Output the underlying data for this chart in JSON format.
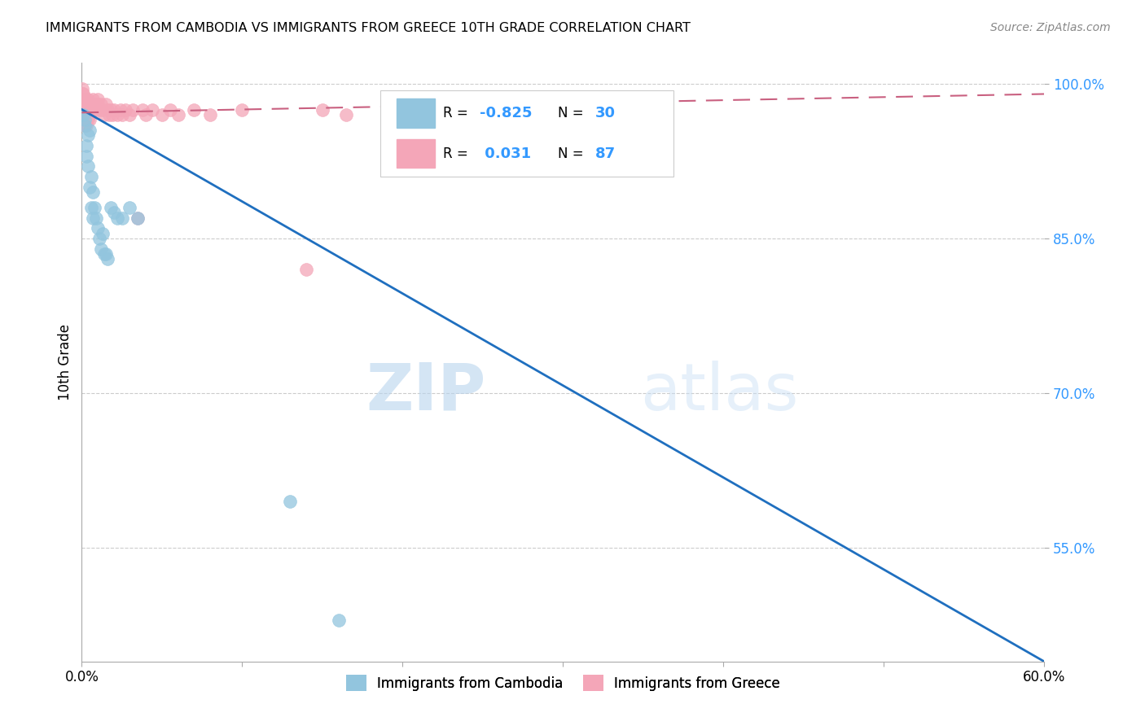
{
  "title": "IMMIGRANTS FROM CAMBODIA VS IMMIGRANTS FROM GREECE 10TH GRADE CORRELATION CHART",
  "source": "Source: ZipAtlas.com",
  "ylabel": "10th Grade",
  "x_label_bottom_center_1": "Immigrants from Cambodia",
  "x_label_bottom_center_2": "Immigrants from Greece",
  "xlim": [
    0.0,
    0.6
  ],
  "ylim": [
    0.44,
    1.02
  ],
  "yticks": [
    0.55,
    0.7,
    0.85,
    1.0
  ],
  "ytick_labels": [
    "55.0%",
    "70.0%",
    "85.0%",
    "100.0%"
  ],
  "xticks": [
    0.0,
    0.1,
    0.2,
    0.3,
    0.4,
    0.5,
    0.6
  ],
  "xtick_labels": [
    "0.0%",
    "",
    "",
    "",
    "",
    "",
    "60.0%"
  ],
  "r_cambodia": -0.825,
  "n_cambodia": 30,
  "r_greece": 0.031,
  "n_greece": 87,
  "color_cambodia": "#92c5de",
  "color_greece": "#f4a6b8",
  "line_color_cambodia": "#1f6fbf",
  "line_color_greece": "#c96080",
  "watermark_zip": "ZIP",
  "watermark_atlas": "atlas",
  "camb_line_x0": 0.0,
  "camb_line_y0": 0.975,
  "camb_line_x1": 0.6,
  "camb_line_y1": 0.44,
  "greece_line_x0": 0.0,
  "greece_line_y0": 0.972,
  "greece_line_x1": 0.6,
  "greece_line_y1": 0.99,
  "cambodia_x": [
    0.001,
    0.002,
    0.002,
    0.003,
    0.003,
    0.004,
    0.004,
    0.005,
    0.005,
    0.006,
    0.006,
    0.007,
    0.007,
    0.008,
    0.009,
    0.01,
    0.011,
    0.012,
    0.013,
    0.014,
    0.015,
    0.016,
    0.018,
    0.02,
    0.022,
    0.025,
    0.03,
    0.035,
    0.13,
    0.16
  ],
  "cambodia_y": [
    0.97,
    0.96,
    0.965,
    0.93,
    0.94,
    0.92,
    0.95,
    0.9,
    0.955,
    0.88,
    0.91,
    0.895,
    0.87,
    0.88,
    0.87,
    0.86,
    0.85,
    0.84,
    0.855,
    0.835,
    0.835,
    0.83,
    0.88,
    0.875,
    0.87,
    0.87,
    0.88,
    0.87,
    0.595,
    0.48
  ],
  "greece_x": [
    0.0005,
    0.0005,
    0.0005,
    0.0005,
    0.0005,
    0.001,
    0.001,
    0.001,
    0.001,
    0.001,
    0.001,
    0.001,
    0.001,
    0.001,
    0.001,
    0.001,
    0.001,
    0.001,
    0.0015,
    0.0015,
    0.002,
    0.002,
    0.002,
    0.002,
    0.002,
    0.002,
    0.002,
    0.002,
    0.002,
    0.002,
    0.003,
    0.003,
    0.003,
    0.003,
    0.003,
    0.003,
    0.003,
    0.003,
    0.003,
    0.003,
    0.004,
    0.004,
    0.004,
    0.004,
    0.004,
    0.005,
    0.005,
    0.005,
    0.005,
    0.006,
    0.006,
    0.007,
    0.007,
    0.007,
    0.008,
    0.009,
    0.01,
    0.01,
    0.011,
    0.012,
    0.013,
    0.014,
    0.015,
    0.016,
    0.017,
    0.018,
    0.019,
    0.02,
    0.022,
    0.024,
    0.025,
    0.027,
    0.03,
    0.032,
    0.035,
    0.038,
    0.04,
    0.044,
    0.05,
    0.055,
    0.06,
    0.07,
    0.08,
    0.1,
    0.14,
    0.15,
    0.165
  ],
  "greece_y": [
    0.985,
    0.99,
    0.995,
    0.98,
    0.975,
    0.99,
    0.985,
    0.98,
    0.975,
    0.97,
    0.985,
    0.98,
    0.975,
    0.97,
    0.965,
    0.985,
    0.98,
    0.975,
    0.98,
    0.975,
    0.985,
    0.98,
    0.975,
    0.97,
    0.965,
    0.98,
    0.975,
    0.97,
    0.965,
    0.96,
    0.985,
    0.98,
    0.975,
    0.97,
    0.965,
    0.98,
    0.975,
    0.97,
    0.965,
    0.96,
    0.985,
    0.98,
    0.975,
    0.97,
    0.965,
    0.98,
    0.975,
    0.97,
    0.965,
    0.98,
    0.975,
    0.985,
    0.98,
    0.975,
    0.98,
    0.975,
    0.985,
    0.98,
    0.975,
    0.98,
    0.975,
    0.97,
    0.98,
    0.975,
    0.97,
    0.975,
    0.97,
    0.975,
    0.97,
    0.975,
    0.97,
    0.975,
    0.97,
    0.975,
    0.87,
    0.975,
    0.97,
    0.975,
    0.97,
    0.975,
    0.97,
    0.975,
    0.97,
    0.975,
    0.82,
    0.975,
    0.97
  ]
}
